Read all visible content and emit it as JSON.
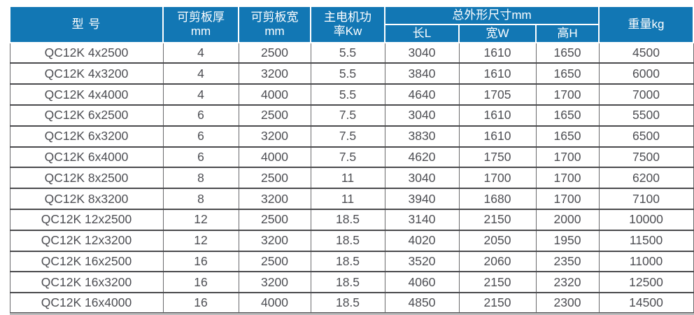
{
  "colors": {
    "header_bg": "#1277b4",
    "header_text": "#ffffff",
    "body_text": "#4d4e53",
    "grid_line": "#4a4a4d"
  },
  "table": {
    "header": {
      "model": "型 号",
      "thickness_line1": "可剪板厚",
      "thickness_line2": "mm",
      "width_line1": "可剪板宽",
      "width_line2": "mm",
      "power_line1": "主电机功",
      "power_line2": "率Kw",
      "dimensions_group": "总外形尺寸mm",
      "dim_length": "长L",
      "dim_width": "宽W",
      "dim_height": "高H",
      "weight": "重量kg"
    },
    "rows": [
      [
        "QC12K 4x2500",
        "4",
        "2500",
        "5.5",
        "3040",
        "1610",
        "1650",
        "4500"
      ],
      [
        "QC12K 4x3200",
        "4",
        "3200",
        "5.5",
        "3840",
        "1610",
        "1650",
        "6000"
      ],
      [
        "QC12K 4x4000",
        "4",
        "4000",
        "5.5",
        "4640",
        "1705",
        "1700",
        "7000"
      ],
      [
        "QC12K 6x2500",
        "6",
        "2500",
        "7.5",
        "3040",
        "1610",
        "1650",
        "5500"
      ],
      [
        "QC12K 6x3200",
        "6",
        "3200",
        "7.5",
        "3830",
        "1610",
        "1650",
        "6500"
      ],
      [
        "QC12K 6x4000",
        "6",
        "4000",
        "7.5",
        "4620",
        "1750",
        "1700",
        "7500"
      ],
      [
        "QC12K 8x2500",
        "8",
        "2500",
        "11",
        "3040",
        "1700",
        "1700",
        "6200"
      ],
      [
        "QC12K 8x3200",
        "8",
        "3200",
        "11",
        "3940",
        "1680",
        "1700",
        "7100"
      ],
      [
        "QC12K 12x2500",
        "12",
        "2500",
        "18.5",
        "3140",
        "2150",
        "2000",
        "10000"
      ],
      [
        "QC12K 12x3200",
        "12",
        "3200",
        "18.5",
        "4020",
        "2050",
        "1950",
        "11500"
      ],
      [
        "QC12K 16x2500",
        "16",
        "2500",
        "18.5",
        "3520",
        "2060",
        "2350",
        "11000"
      ],
      [
        "QC12K 16x3200",
        "16",
        "3200",
        "18.5",
        "4060",
        "2150",
        "2320",
        "12500"
      ],
      [
        "QC12K 16x4000",
        "16",
        "4000",
        "18.5",
        "4850",
        "2150",
        "2300",
        "14500"
      ]
    ]
  }
}
